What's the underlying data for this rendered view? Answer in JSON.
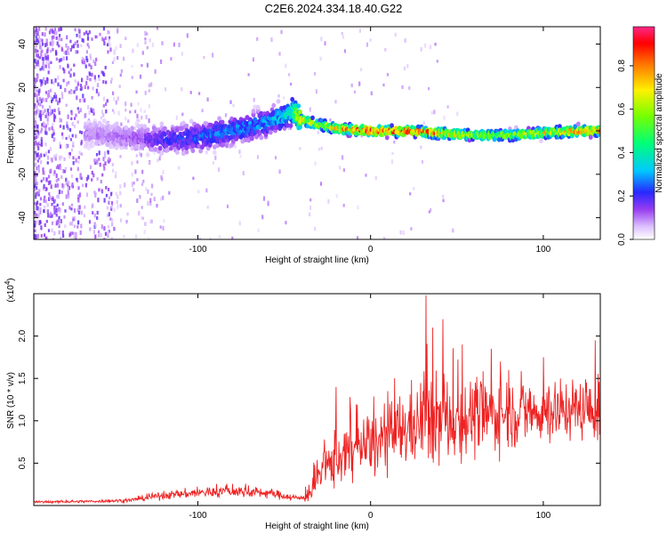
{
  "title": "C2E6.2024.334.18.40.G22",
  "chart_data": [
    {
      "type": "heatmap",
      "xlabel": "Height of straight line (km)",
      "ylabel": "Frequency (Hz)",
      "xlim": [
        -195,
        133
      ],
      "ylim": [
        -50,
        48
      ],
      "xticks": [
        -100,
        0,
        100
      ],
      "yticks": [
        -40,
        -20,
        0,
        20,
        40
      ],
      "colorbar": {
        "label": "Normalized spectral amplitude",
        "range": [
          0.0,
          0.98
        ],
        "ticks": [
          0.0,
          0.2,
          0.4,
          0.6,
          0.8
        ],
        "tick_labels": [
          "0.0",
          "0.2",
          "0.4",
          "0.6",
          "0.8"
        ]
      },
      "ridge": {
        "x": [
          -160,
          -140,
          -120,
          -100,
          -80,
          -60,
          -50,
          -45,
          -40,
          -30,
          -20,
          0,
          20,
          40,
          60,
          80,
          100,
          120,
          133
        ],
        "freq": [
          -1,
          -3,
          -4,
          -3,
          0,
          4,
          7,
          9,
          5,
          3,
          1,
          0,
          0,
          -1,
          -2,
          -2,
          -1,
          0,
          0
        ],
        "amplitude": [
          0.1,
          0.12,
          0.2,
          0.25,
          0.28,
          0.3,
          0.35,
          0.45,
          0.75,
          0.6,
          0.7,
          0.9,
          0.85,
          0.8,
          0.6,
          0.6,
          0.7,
          0.8,
          0.8
        ]
      }
    },
    {
      "type": "line",
      "xlabel": "Height of straight line (km)",
      "ylabel": "SNR (10 * v/v)",
      "scale_label": "(x10",
      "scale_exp": "4",
      "xlim": [
        -195,
        133
      ],
      "ylim": [
        0,
        2.5
      ],
      "xticks": [
        -100,
        0,
        100
      ],
      "yticks": [
        0.5,
        1.0,
        1.5,
        2.0
      ],
      "ytick_labels": [
        "0.5",
        "1.0",
        "1.5",
        "2.0"
      ],
      "color": "#ee2222",
      "envelope": {
        "x": [
          -195,
          -160,
          -140,
          -120,
          -100,
          -80,
          -60,
          -40,
          -35,
          -30,
          -20,
          -10,
          0,
          10,
          20,
          30,
          40,
          60,
          80,
          100,
          120,
          133
        ],
        "mean": [
          0.04,
          0.05,
          0.06,
          0.12,
          0.15,
          0.17,
          0.15,
          0.08,
          0.15,
          0.35,
          0.55,
          0.65,
          0.7,
          0.8,
          0.9,
          1.0,
          1.0,
          1.05,
          1.1,
          1.1,
          1.15,
          1.1
        ],
        "spread": [
          0.02,
          0.02,
          0.03,
          0.06,
          0.08,
          0.09,
          0.08,
          0.04,
          0.15,
          0.3,
          0.45,
          0.5,
          0.5,
          0.55,
          0.6,
          0.7,
          0.7,
          0.6,
          0.55,
          0.5,
          0.45,
          0.5
        ]
      },
      "peaks": [
        {
          "x": -20,
          "y": 1.4
        },
        {
          "x": -12,
          "y": 1.28
        },
        {
          "x": 10,
          "y": 1.35
        },
        {
          "x": 32,
          "y": 2.48
        },
        {
          "x": 36,
          "y": 2.1
        },
        {
          "x": 42,
          "y": 2.2
        },
        {
          "x": 53,
          "y": 1.9
        },
        {
          "x": 70,
          "y": 1.85
        },
        {
          "x": 80,
          "y": 1.6
        },
        {
          "x": 100,
          "y": 1.75
        },
        {
          "x": 110,
          "y": 1.5
        },
        {
          "x": 130,
          "y": 1.95
        }
      ]
    }
  ]
}
